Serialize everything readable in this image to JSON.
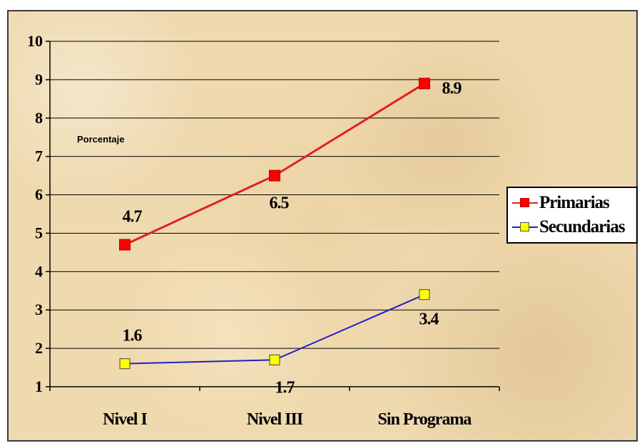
{
  "chart_data": {
    "type": "line",
    "title": "",
    "xlabel": "",
    "ylabel": "",
    "annotation": "Porcentaje",
    "categories": [
      "Nivel I",
      "Nivel III",
      "Sin Programa"
    ],
    "ylim": [
      1,
      10
    ],
    "yticks": [
      "1",
      "2",
      "3",
      "4",
      "5",
      "6",
      "7",
      "8",
      "9",
      "10"
    ],
    "grid": true,
    "legend_position": "right",
    "series": [
      {
        "name": "Primarias",
        "values": [
          4.7,
          6.5,
          8.9
        ],
        "labels": [
          "4.7",
          "6.5",
          "8.9"
        ],
        "color": "#e02020",
        "marker_color": "#ff0000"
      },
      {
        "name": "Secundarias",
        "values": [
          1.6,
          1.7,
          3.4
        ],
        "labels": [
          "1.6",
          "1.7",
          "3.4"
        ],
        "color": "#2020c8",
        "marker_color": "#ffff00"
      }
    ]
  }
}
